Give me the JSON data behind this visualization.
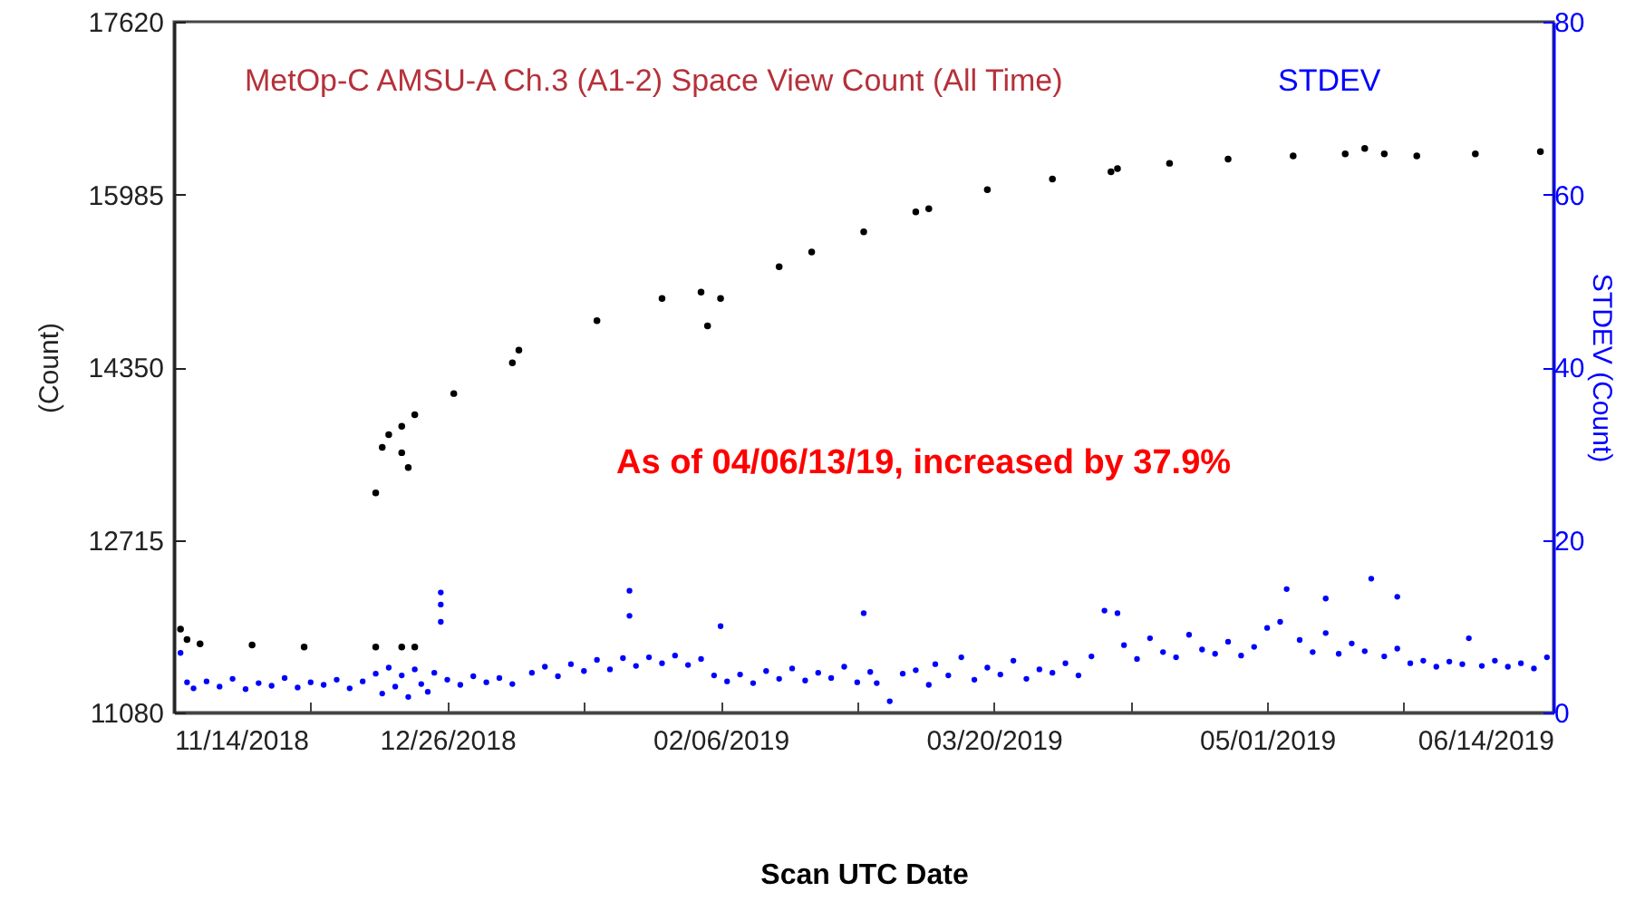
{
  "chart_data": {
    "type": "scatter",
    "title": "MetOp-C AMSU-A Ch.3 (A1-2) Space View Count (All Time)",
    "xlabel": "Scan UTC Date",
    "ylabel": "(Count)",
    "y2label": "STDEV (Count)",
    "marker": "circle",
    "annotations": [
      "As of 04/06/13/19, increased by 37.9%"
    ],
    "xlim": [
      "2018-11-14",
      "2019-06-14"
    ],
    "xticks": [
      {
        "value": "2018-11-14",
        "label": "11/14/2018"
      },
      {
        "value": "2018-12-05",
        "label": null
      },
      {
        "value": "2018-12-26",
        "label": "12/26/2018"
      },
      {
        "value": "2019-01-16",
        "label": null
      },
      {
        "value": "2019-02-06",
        "label": "02/06/2019"
      },
      {
        "value": "2019-02-27",
        "label": null
      },
      {
        "value": "2019-03-20",
        "label": "03/20/2019"
      },
      {
        "value": "2019-04-10",
        "label": null
      },
      {
        "value": "2019-05-01",
        "label": "05/01/2019"
      },
      {
        "value": "2019-05-22",
        "label": null
      },
      {
        "value": "2019-06-14",
        "label": "06/14/2019"
      }
    ],
    "ylim": [
      11080,
      17620
    ],
    "yticks": [
      11080,
      12715,
      14350,
      15985,
      17620
    ],
    "y2lim": [
      0,
      80
    ],
    "y2ticks": [
      0,
      20,
      40,
      60,
      80
    ],
    "series": [
      {
        "color": "#000000",
        "x": [
          "2018-11-15",
          "2018-11-16",
          "2018-11-18",
          "2018-11-26",
          "2018-12-04",
          "2018-12-15",
          "2018-12-19",
          "2018-12-21",
          "2018-12-15",
          "2018-12-19",
          "2018-12-20",
          "2018-12-16",
          "2018-12-17",
          "2018-12-19",
          "2018-12-21",
          "2018-12-27",
          "2019-01-05",
          "2019-01-06",
          "2019-01-18",
          "2019-01-28",
          "2019-02-03",
          "2019-02-04",
          "2019-02-06",
          "2019-02-15",
          "2019-02-20",
          "2019-02-28",
          "2019-03-08",
          "2019-03-10",
          "2019-03-19",
          "2019-03-29",
          "2019-04-07",
          "2019-04-08",
          "2019-04-16",
          "2019-04-25",
          "2019-05-05",
          "2019-05-13",
          "2019-05-16",
          "2019-05-19",
          "2019-05-24",
          "2019-06-02",
          "2019-06-12"
        ],
        "values": [
          11870,
          11770,
          11730,
          11720,
          11700,
          11700,
          11700,
          11700,
          13160,
          13540,
          13400,
          13590,
          13710,
          13790,
          13900,
          14100,
          14390,
          14510,
          14790,
          15000,
          15060,
          14740,
          15000,
          15300,
          15440,
          15630,
          15820,
          15850,
          16030,
          16130,
          16200,
          16230,
          16280,
          16320,
          16350,
          16370,
          16420,
          16370,
          16350,
          16370,
          16390
        ]
      },
      {
        "name": "STDEV",
        "color": "#0000ff",
        "axis": "y2",
        "x": [
          "2018-11-15",
          "2018-11-16",
          "2018-11-17",
          "2018-11-19",
          "2018-11-21",
          "2018-11-23",
          "2018-11-25",
          "2018-11-27",
          "2018-11-29",
          "2018-12-01",
          "2018-12-03",
          "2018-12-05",
          "2018-12-07",
          "2018-12-09",
          "2018-12-11",
          "2018-12-13",
          "2018-12-15",
          "2018-12-16",
          "2018-12-17",
          "2018-12-18",
          "2018-12-19",
          "2018-12-20",
          "2018-12-21",
          "2018-12-22",
          "2018-12-23",
          "2018-12-24",
          "2018-12-25",
          "2018-12-25",
          "2018-12-25",
          "2018-12-26",
          "2018-12-28",
          "2018-12-30",
          "2019-01-01",
          "2019-01-03",
          "2019-01-05",
          "2019-01-08",
          "2019-01-10",
          "2019-01-12",
          "2019-01-14",
          "2019-01-16",
          "2019-01-18",
          "2019-01-20",
          "2019-01-22",
          "2019-01-23",
          "2019-01-23",
          "2019-01-24",
          "2019-01-26",
          "2019-01-28",
          "2019-01-30",
          "2019-02-01",
          "2019-02-03",
          "2019-02-05",
          "2019-02-06",
          "2019-02-07",
          "2019-02-09",
          "2019-02-11",
          "2019-02-13",
          "2019-02-15",
          "2019-02-17",
          "2019-02-19",
          "2019-02-21",
          "2019-02-23",
          "2019-02-25",
          "2019-02-27",
          "2019-02-28",
          "2019-03-01",
          "2019-03-02",
          "2019-03-04",
          "2019-03-06",
          "2019-03-08",
          "2019-03-10",
          "2019-03-11",
          "2019-03-13",
          "2019-03-15",
          "2019-03-17",
          "2019-03-19",
          "2019-03-21",
          "2019-03-23",
          "2019-03-25",
          "2019-03-27",
          "2019-03-29",
          "2019-03-31",
          "2019-04-02",
          "2019-04-04",
          "2019-04-06",
          "2019-04-08",
          "2019-04-09",
          "2019-04-11",
          "2019-04-13",
          "2019-04-15",
          "2019-04-17",
          "2019-04-19",
          "2019-04-21",
          "2019-04-23",
          "2019-04-25",
          "2019-04-27",
          "2019-04-29",
          "2019-05-01",
          "2019-05-03",
          "2019-05-04",
          "2019-05-06",
          "2019-05-08",
          "2019-05-10",
          "2019-05-10",
          "2019-05-12",
          "2019-05-14",
          "2019-05-16",
          "2019-05-17",
          "2019-05-19",
          "2019-05-21",
          "2019-05-21",
          "2019-05-23",
          "2019-05-25",
          "2019-05-27",
          "2019-05-29",
          "2019-05-31",
          "2019-06-01",
          "2019-06-03",
          "2019-06-05",
          "2019-06-07",
          "2019-06-09",
          "2019-06-11",
          "2019-06-13"
        ],
        "values": [
          6.9,
          3.5,
          2.8,
          3.6,
          3.0,
          3.9,
          2.7,
          3.4,
          3.1,
          4.0,
          2.9,
          3.5,
          3.2,
          3.8,
          2.8,
          3.6,
          4.5,
          2.2,
          5.2,
          3.0,
          4.3,
          1.8,
          5.0,
          3.3,
          2.4,
          4.6,
          12.5,
          13.9,
          10.5,
          3.8,
          3.2,
          4.2,
          3.5,
          4.0,
          3.3,
          4.6,
          5.3,
          4.2,
          5.6,
          4.8,
          6.1,
          5.0,
          6.3,
          11.2,
          14.1,
          5.4,
          6.4,
          5.7,
          6.6,
          5.5,
          6.2,
          4.3,
          10.0,
          3.6,
          4.4,
          3.4,
          4.8,
          3.9,
          5.1,
          3.7,
          4.6,
          4.0,
          5.3,
          3.5,
          11.5,
          4.7,
          3.4,
          1.3,
          4.5,
          4.9,
          3.2,
          5.6,
          4.3,
          6.4,
          3.8,
          5.2,
          4.4,
          6.0,
          3.9,
          5.0,
          4.6,
          5.7,
          4.3,
          6.5,
          11.8,
          11.5,
          7.8,
          6.2,
          8.6,
          7.0,
          6.4,
          9.0,
          7.3,
          6.8,
          8.2,
          6.6,
          7.6,
          9.8,
          10.5,
          14.3,
          8.4,
          7.0,
          9.2,
          13.2,
          6.8,
          8.0,
          7.1,
          15.5,
          6.5,
          13.4,
          7.4,
          5.7,
          6.0,
          5.3,
          5.9,
          5.6,
          8.6,
          5.4,
          6.0,
          5.3,
          5.7,
          5.1,
          6.4
        ]
      }
    ]
  }
}
